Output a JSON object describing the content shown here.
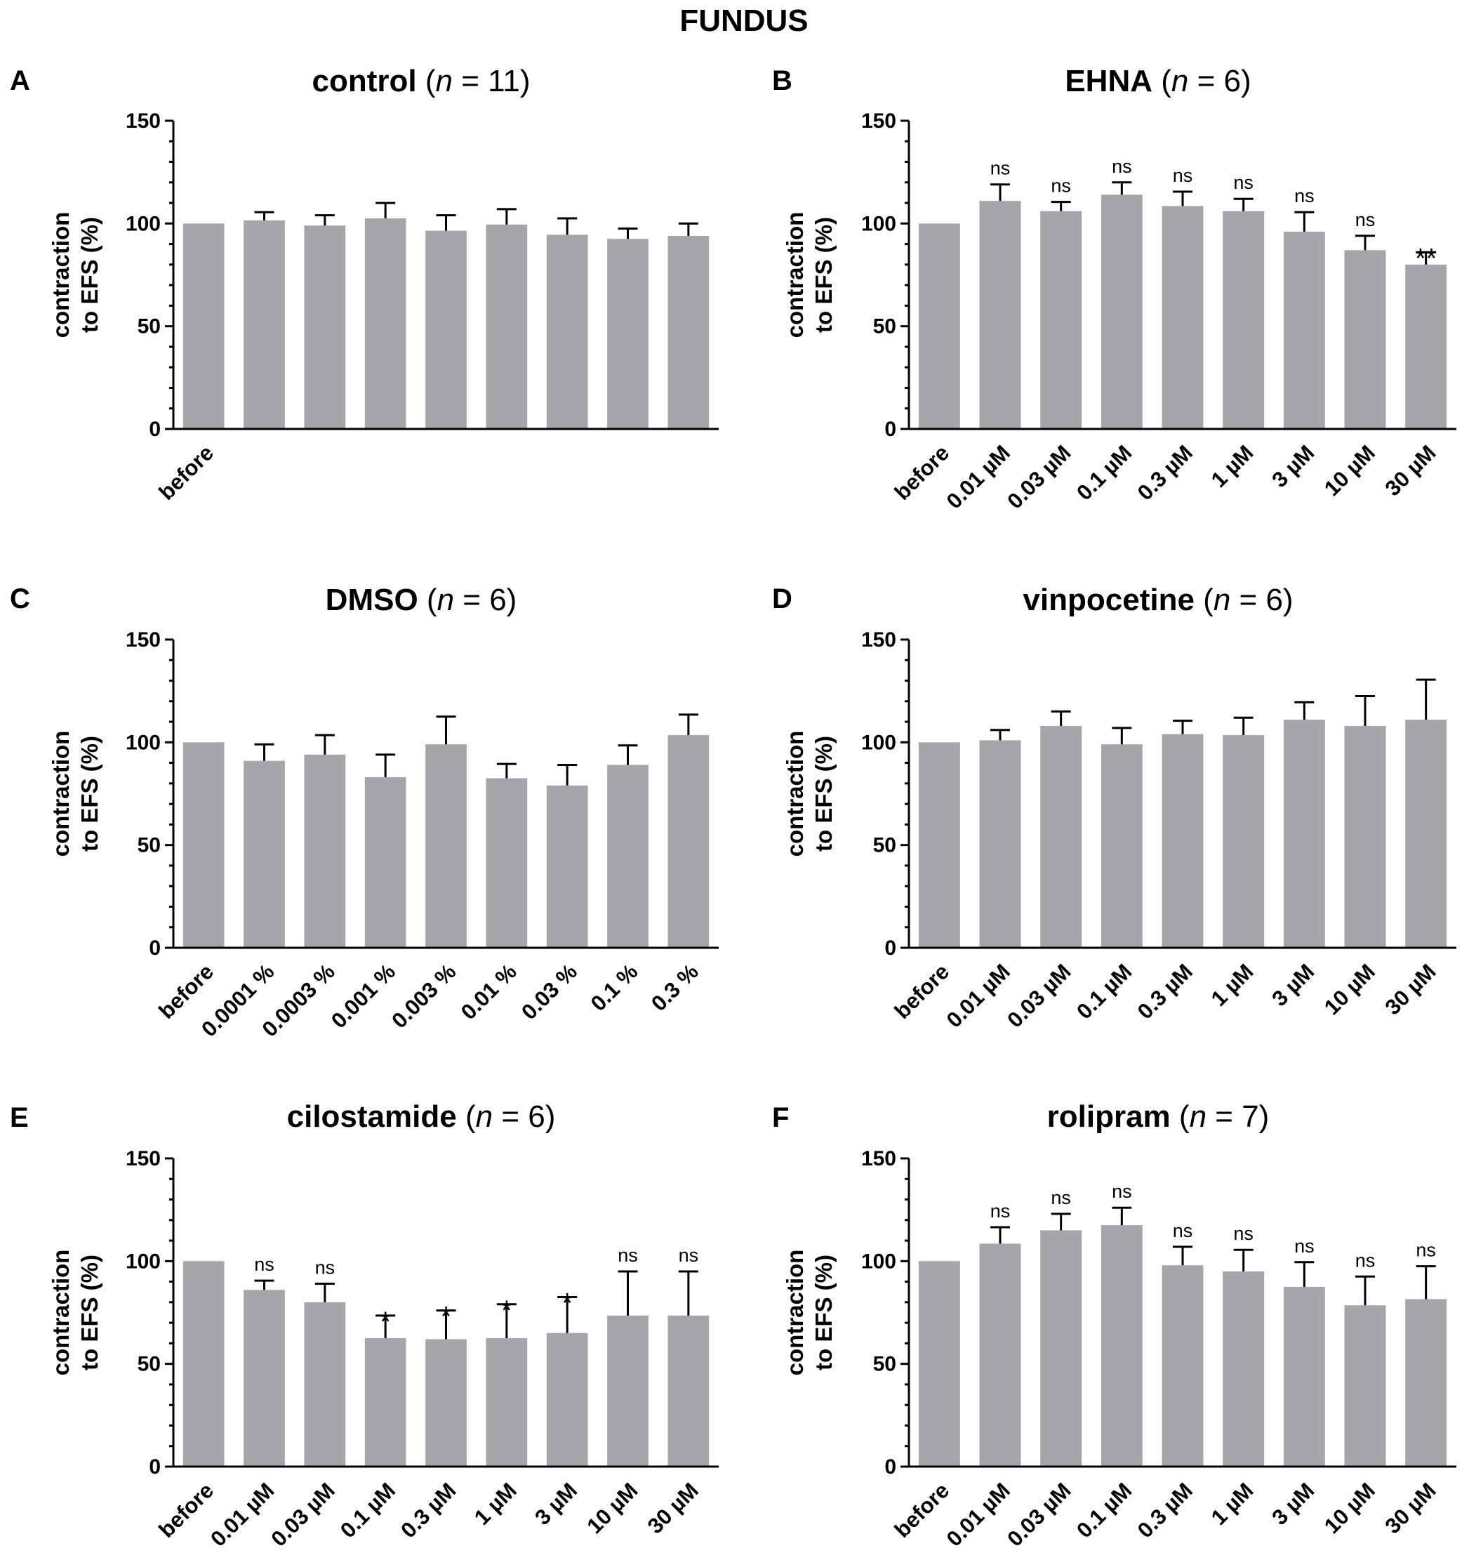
{
  "figure_title": "FUNDUS",
  "colors": {
    "bar": "#a5a5aa",
    "axis": "#000000"
  },
  "chart_data": [
    {
      "panel": "A",
      "type": "bar",
      "title_bold": "control",
      "title_n_label": "n",
      "title_n_value": "= 11",
      "ylabel_line1": "contraction",
      "ylabel_line2": "to EFS (%)",
      "ylim": [
        0,
        150
      ],
      "yticks": [
        0,
        50,
        100,
        150
      ],
      "categories": [
        "before",
        "",
        "",
        "",
        "",
        "",
        "",
        "",
        ""
      ],
      "values": [
        100,
        101.5,
        99,
        102.5,
        96.5,
        99.5,
        94.5,
        92.5,
        94
      ],
      "errors": [
        0,
        4,
        5,
        7.5,
        7.5,
        7.5,
        8,
        5,
        6
      ],
      "annotations": [
        "",
        "",
        "",
        "",
        "",
        "",
        "",
        "",
        ""
      ]
    },
    {
      "panel": "B",
      "type": "bar",
      "title_bold": "EHNA",
      "title_n_label": "n",
      "title_n_value": "= 6",
      "ylabel_line1": "contraction",
      "ylabel_line2": "to EFS (%)",
      "ylim": [
        0,
        150
      ],
      "yticks": [
        0,
        50,
        100,
        150
      ],
      "categories": [
        "before",
        "0.01 µM",
        "0.03 µM",
        "0.1 µM",
        "0.3 µM",
        "1 µM",
        "3 µM",
        "10 µM",
        "30 µM"
      ],
      "values": [
        100,
        111,
        106,
        114,
        108.5,
        106,
        96,
        87,
        80
      ],
      "errors": [
        0,
        8,
        4.5,
        6,
        7,
        6,
        9.5,
        7,
        6
      ],
      "annotations": [
        "",
        "ns",
        "ns",
        "ns",
        "ns",
        "ns",
        "ns",
        "ns",
        "**"
      ]
    },
    {
      "panel": "C",
      "type": "bar",
      "title_bold": "DMSO",
      "title_n_label": "n",
      "title_n_value": "= 6",
      "ylabel_line1": "contraction",
      "ylabel_line2": "to EFS (%)",
      "ylim": [
        0,
        150
      ],
      "yticks": [
        0,
        50,
        100,
        150
      ],
      "categories": [
        "before",
        "0.0001 %",
        "0.0003 %",
        "0.001 %",
        "0.003 %",
        "0.01 %",
        "0.03 %",
        "0.1 %",
        "0.3 %"
      ],
      "values": [
        100,
        91,
        94,
        83,
        99,
        82.5,
        79,
        89,
        103.5
      ],
      "errors": [
        0,
        8,
        9.5,
        11,
        13.5,
        7,
        10,
        9.5,
        10
      ],
      "annotations": [
        "",
        "",
        "",
        "",
        "",
        "",
        "",
        "",
        ""
      ]
    },
    {
      "panel": "D",
      "type": "bar",
      "title_bold": "vinpocetine",
      "title_n_label": "n",
      "title_n_value": "= 6",
      "ylabel_line1": "contraction",
      "ylabel_line2": "to EFS (%)",
      "ylim": [
        0,
        150
      ],
      "yticks": [
        0,
        50,
        100,
        150
      ],
      "categories": [
        "before",
        "0.01 µM",
        "0.03 µM",
        "0.1 µM",
        "0.3 µM",
        "1 µM",
        "3 µM",
        "10 µM",
        "30 µM"
      ],
      "values": [
        100,
        101,
        108,
        99,
        104,
        103.5,
        111,
        108,
        111
      ],
      "errors": [
        0,
        5,
        7,
        8,
        6.5,
        8.5,
        8.5,
        14.5,
        19.5
      ],
      "annotations": [
        "",
        "",
        "",
        "",
        "",
        "",
        "",
        "",
        ""
      ]
    },
    {
      "panel": "E",
      "type": "bar",
      "title_bold": "cilostamide",
      "title_n_label": "n",
      "title_n_value": "= 6",
      "ylabel_line1": "contraction",
      "ylabel_line2": "to EFS (%)",
      "ylim": [
        0,
        150
      ],
      "yticks": [
        0,
        50,
        100,
        150
      ],
      "categories": [
        "before",
        "0.01 µM",
        "0.03 µM",
        "0.1 µM",
        "0.3 µM",
        "1 µM",
        "3 µM",
        "10 µM",
        "30 µM"
      ],
      "values": [
        100,
        86,
        80,
        62.5,
        62,
        62.5,
        65,
        73.5,
        73.5
      ],
      "errors": [
        0,
        4.5,
        9,
        11,
        14,
        16.5,
        17.5,
        21.5,
        21.5
      ],
      "annotations": [
        "",
        "ns",
        "ns",
        "*",
        "*",
        "*",
        "*",
        "ns",
        "ns"
      ]
    },
    {
      "panel": "F",
      "type": "bar",
      "title_bold": "rolipram",
      "title_n_label": "n",
      "title_n_value": "= 7",
      "ylabel_line1": "contraction",
      "ylabel_line2": "to EFS (%)",
      "ylim": [
        0,
        150
      ],
      "yticks": [
        0,
        50,
        100,
        150
      ],
      "categories": [
        "before",
        "0.01 µM",
        "0.03 µM",
        "0.1 µM",
        "0.3 µM",
        "1 µM",
        "3 µM",
        "10 µM",
        "30 µM"
      ],
      "values": [
        100,
        108.5,
        115,
        117.5,
        98,
        95,
        87.5,
        78.5,
        81.5
      ],
      "errors": [
        0,
        8,
        8,
        8.5,
        9,
        10.5,
        12,
        14,
        16
      ],
      "annotations": [
        "",
        "ns",
        "ns",
        "ns",
        "ns",
        "ns",
        "ns",
        "ns",
        "ns"
      ]
    }
  ]
}
